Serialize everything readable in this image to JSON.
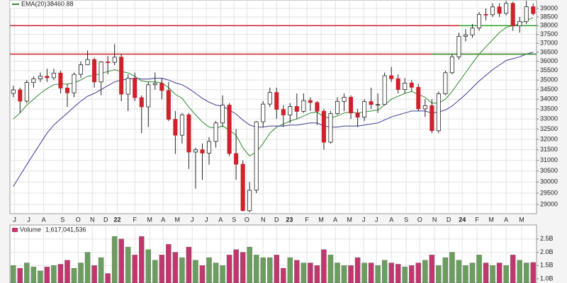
{
  "chart_data": [
    {
      "type": "candlestick",
      "ylog": true,
      "grid": true,
      "ylim": [
        28600,
        39500
      ],
      "yticks": [
        29000,
        29500,
        30000,
        30500,
        31000,
        31500,
        32000,
        32500,
        33000,
        33500,
        34000,
        34500,
        35000,
        35500,
        36000,
        36500,
        37000,
        37500,
        38000,
        38500,
        39000
      ],
      "xlim": [
        -0.5,
        77.5
      ],
      "xticks": [
        {
          "value": 0.2,
          "label": "J"
        },
        {
          "value": 2.3,
          "label": "J"
        },
        {
          "value": 4.5,
          "label": "A"
        },
        {
          "value": 7.3,
          "label": "S"
        },
        {
          "value": 9.6,
          "label": "O"
        },
        {
          "value": 11.7,
          "label": "N"
        },
        {
          "value": 13.7,
          "label": "D"
        },
        {
          "value": 15.4,
          "label": "22"
        },
        {
          "value": 18.0,
          "label": "F"
        },
        {
          "value": 20.2,
          "label": "M"
        },
        {
          "value": 22.2,
          "label": "A"
        },
        {
          "value": 24.3,
          "label": "M"
        },
        {
          "value": 26.5,
          "label": "J"
        },
        {
          "value": 28.6,
          "label": "J"
        },
        {
          "value": 30.7,
          "label": "A"
        },
        {
          "value": 32.7,
          "label": "S"
        },
        {
          "value": 34.6,
          "label": "O"
        },
        {
          "value": 37.0,
          "label": "N"
        },
        {
          "value": 39.0,
          "label": "D"
        },
        {
          "value": 40.9,
          "label": "23"
        },
        {
          "value": 43.5,
          "label": "F"
        },
        {
          "value": 45.6,
          "label": "M"
        },
        {
          "value": 47.7,
          "label": "A"
        },
        {
          "value": 49.8,
          "label": "M"
        },
        {
          "value": 51.9,
          "label": "J"
        },
        {
          "value": 53.8,
          "label": "J"
        },
        {
          "value": 56.0,
          "label": "A"
        },
        {
          "value": 58.2,
          "label": "S"
        },
        {
          "value": 60.2,
          "label": "O"
        },
        {
          "value": 62.4,
          "label": "N"
        },
        {
          "value": 64.5,
          "label": "D"
        },
        {
          "value": 66.5,
          "label": "24"
        },
        {
          "value": 68.7,
          "label": "F"
        },
        {
          "value": 70.8,
          "label": "M"
        },
        {
          "value": 73.0,
          "label": "A"
        },
        {
          "value": 75.3,
          "label": "M"
        }
      ],
      "open": [
        34300,
        34480,
        33900,
        34870,
        35060,
        35200,
        35120,
        35370,
        34580,
        34330,
        35300,
        35820,
        36100,
        34900,
        35970,
        35950,
        36230,
        34260,
        35090,
        34080,
        33610,
        34750,
        34820,
        34450,
        32980,
        32200,
        33210,
        31390,
        31500,
        31340,
        31900,
        32800,
        33700,
        31320,
        30820,
        28730,
        29630,
        32860,
        33750,
        34350,
        33480,
        33200,
        33630,
        33380,
        33930,
        33830,
        33390,
        31860,
        33270,
        33890,
        34100,
        33300,
        33090,
        33880,
        33730,
        33730,
        35230,
        35070,
        34500,
        34840,
        34620,
        33510,
        33670,
        32420,
        34280,
        35390,
        36250,
        37390,
        37470,
        37860,
        38650,
        38630,
        39090,
        38710,
        39300,
        37980,
        38240,
        39100
      ],
      "high": [
        34700,
        34600,
        35000,
        35200,
        35400,
        35600,
        35600,
        35500,
        34800,
        35400,
        36000,
        36600,
        36200,
        36000,
        36300,
        36950,
        36400,
        35300,
        35400,
        34200,
        34900,
        35400,
        35100,
        34900,
        33400,
        33300,
        33300,
        31600,
        31800,
        32100,
        32900,
        34200,
        33800,
        32500,
        31000,
        30000,
        32900,
        33900,
        34600,
        34600,
        33700,
        33800,
        34300,
        34300,
        34100,
        33900,
        33500,
        33400,
        34100,
        34300,
        34200,
        33500,
        34000,
        34600,
        34300,
        35400,
        35700,
        35300,
        35100,
        35000,
        34800,
        34000,
        34000,
        34400,
        35500,
        36400,
        37600,
        37800,
        38100,
        38800,
        39000,
        39300,
        39300,
        39450,
        39400,
        38500,
        39450,
        39300
      ],
      "low": [
        34100,
        33300,
        33800,
        34600,
        34900,
        34900,
        35000,
        34300,
        33600,
        34100,
        35100,
        35800,
        34600,
        34200,
        35300,
        35800,
        33900,
        33400,
        33900,
        32300,
        32600,
        34500,
        34000,
        32900,
        31300,
        31800,
        30600,
        29700,
        30100,
        30800,
        31600,
        32600,
        31200,
        30100,
        28700,
        28660,
        29500,
        32600,
        33600,
        33000,
        32600,
        32800,
        33000,
        33300,
        33400,
        32700,
        31500,
        31800,
        33200,
        33400,
        33000,
        32600,
        32900,
        33500,
        33300,
        33700,
        34900,
        34300,
        34300,
        34400,
        33400,
        33100,
        32300,
        32300,
        34200,
        35300,
        36100,
        37100,
        37300,
        37700,
        38300,
        38500,
        38500,
        38600,
        37700,
        37600,
        38100,
        38600
      ],
      "close": [
        34480,
        33900,
        34870,
        35060,
        35200,
        35120,
        35370,
        34580,
        34330,
        35300,
        35820,
        36100,
        34900,
        35970,
        35950,
        36230,
        34260,
        35090,
        34080,
        33610,
        34750,
        34820,
        34450,
        32980,
        32200,
        33210,
        31390,
        31500,
        31340,
        31900,
        32800,
        33700,
        31320,
        30820,
        28730,
        29630,
        32860,
        33750,
        34350,
        33480,
        33200,
        33630,
        33380,
        33930,
        33830,
        33390,
        31860,
        33270,
        33890,
        34100,
        33300,
        33090,
        33880,
        33730,
        33730,
        35230,
        35070,
        34500,
        34840,
        34620,
        33510,
        33670,
        32420,
        34280,
        35390,
        36250,
        37390,
        37470,
        37860,
        38650,
        38630,
        39090,
        38710,
        39300,
        37980,
        38240,
        39100,
        38700
      ],
      "up_color": "#ffffff",
      "down_color": "#d0202a",
      "wick_color": "#222222",
      "series": [
        {
          "name": "EMA(20)",
          "color": "#2e8b2e",
          "values": [
            33000,
            33300,
            33700,
            34000,
            34300,
            34550,
            34750,
            34800,
            34780,
            34850,
            35000,
            35200,
            35250,
            35350,
            35450,
            35550,
            35450,
            35380,
            35200,
            34950,
            34900,
            34900,
            34850,
            34600,
            34250,
            34050,
            33600,
            33200,
            32850,
            32600,
            32550,
            32650,
            32450,
            32200,
            31600,
            31200,
            31400,
            31800,
            32300,
            32600,
            32750,
            32900,
            33000,
            33150,
            33300,
            33350,
            33100,
            33050,
            33150,
            33300,
            33350,
            33300,
            33350,
            33400,
            33450,
            33700,
            34000,
            34150,
            34300,
            34400,
            34250,
            34100,
            33800,
            33800,
            34000,
            34400,
            34900,
            35400,
            35900,
            36400,
            36800,
            37200,
            37600,
            37900,
            38000,
            38100,
            38300,
            38460.88
          ]
        },
        {
          "color": "#3a3a9a",
          "values": [
            29800,
            30300,
            30800,
            31300,
            31800,
            32300,
            32700,
            33000,
            33300,
            33600,
            33900,
            34150,
            34300,
            34500,
            34700,
            34900,
            35000,
            35050,
            35100,
            35050,
            35050,
            35100,
            35100,
            35000,
            34850,
            34750,
            34550,
            34300,
            34050,
            33850,
            33700,
            33650,
            33450,
            33250,
            32950,
            32700,
            32600,
            32600,
            32650,
            32650,
            32650,
            32700,
            32700,
            32750,
            32800,
            32800,
            32650,
            32600,
            32600,
            32650,
            32650,
            32650,
            32700,
            32750,
            32800,
            32950,
            33100,
            33200,
            33300,
            33400,
            33400,
            33400,
            33300,
            33350,
            33450,
            33650,
            33950,
            34250,
            34600,
            34950,
            35250,
            35550,
            35800,
            36050,
            36150,
            36250,
            36400,
            36500
          ]
        }
      ],
      "levels": [
        {
          "value": 38000,
          "color": "#d0202a"
        },
        {
          "value": 36400,
          "color": "#d0202a"
        },
        {
          "value": 38000,
          "color": "#2ca02c",
          "start": 66
        },
        {
          "value": 36400,
          "color": "#2ca02c",
          "start": 62
        }
      ]
    },
    {
      "type": "bar",
      "title": "Volume",
      "last_label": "1,617,041,536",
      "ylim": [
        840000000,
        3030000000
      ],
      "yticks": [
        {
          "value": 1000000000,
          "label": "1.0B"
        },
        {
          "value": 1500000000,
          "label": "1.5B"
        },
        {
          "value": 2000000000,
          "label": "2.0B"
        },
        {
          "value": 2500000000,
          "label": "2.5B"
        }
      ],
      "up_color": "#6b9e5e",
      "down_color": "#c2366e",
      "values": [
        1500000000,
        1400000000,
        1600000000,
        1450000000,
        1300000000,
        1450000000,
        1500000000,
        1550000000,
        1700000000,
        1400000000,
        1600000000,
        2000000000,
        1500000000,
        1800000000,
        1200000000,
        2600000000,
        2500000000,
        2200000000,
        1900000000,
        2600000000,
        2100000000,
        1700000000,
        1900000000,
        2300000000,
        2000000000,
        1800000000,
        2200000000,
        1700000000,
        1500000000,
        1800000000,
        1600000000,
        1500000000,
        1900000000,
        2100000000,
        2000000000,
        2200000000,
        1900000000,
        1800000000,
        1800000000,
        1900000000,
        1400000000,
        1800000000,
        1700000000,
        1600000000,
        1600000000,
        1500000000,
        2100000000,
        1900000000,
        1600000000,
        1500000000,
        1500000000,
        1800000000,
        1600000000,
        1600000000,
        1500000000,
        1700000000,
        1600000000,
        1550000000,
        1450000000,
        1500000000,
        1600000000,
        1700000000,
        1900000000,
        1500000000,
        1800000000,
        2000000000,
        1700000000,
        1500000000,
        1600000000,
        1900000000,
        1600000000,
        1500000000,
        1600000000,
        1500000000,
        1900000000,
        1700000000,
        1600000000,
        1617041536
      ]
    }
  ]
}
